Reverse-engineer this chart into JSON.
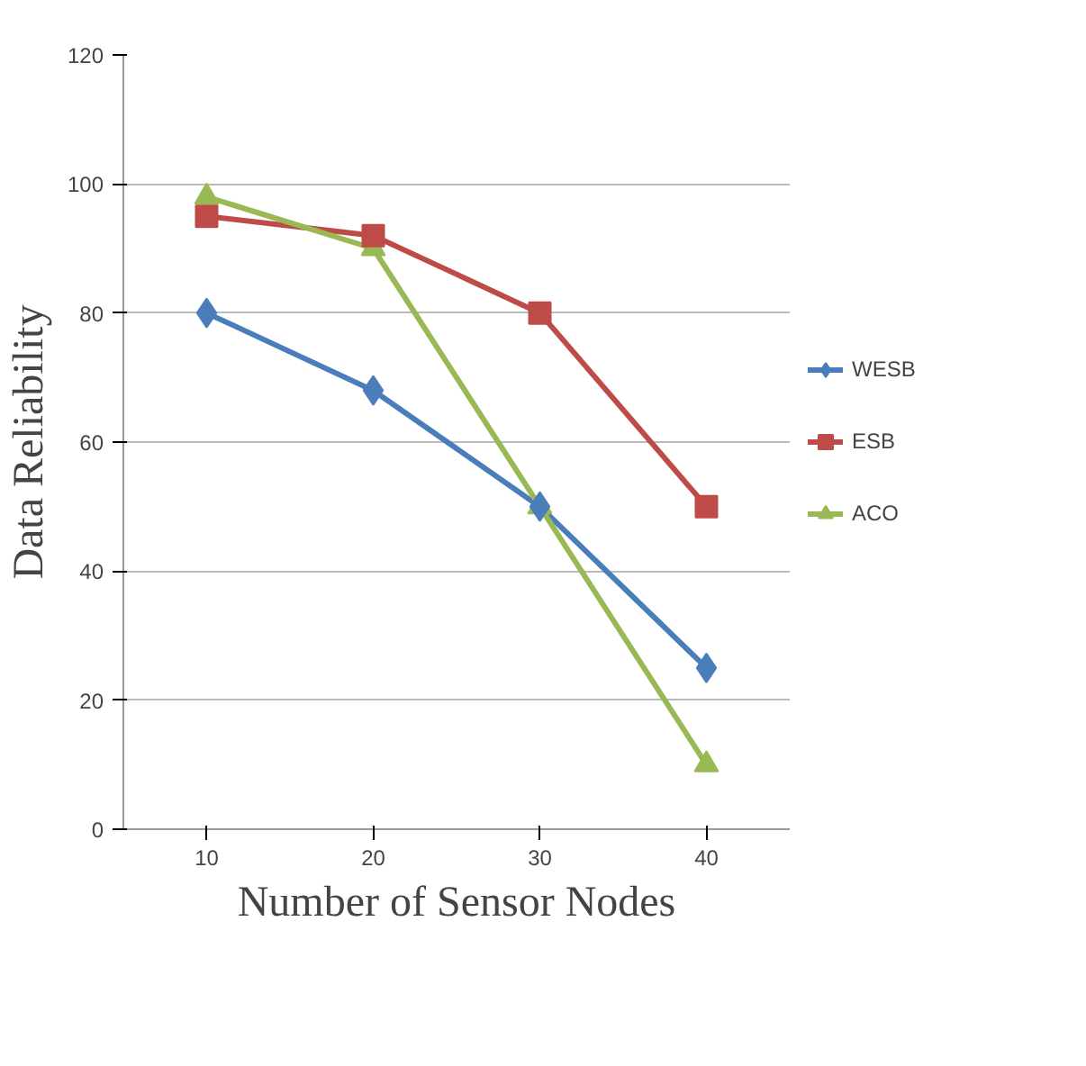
{
  "chart_data": {
    "type": "line",
    "xlabel": "Number of Sensor Nodes",
    "ylabel": "Data Reliability",
    "categories": [
      "10",
      "20",
      "30",
      "40"
    ],
    "series": [
      {
        "name": "WESB",
        "color": "#4a7ebb",
        "values": [
          80,
          68,
          50,
          25
        ],
        "marker": "diamond"
      },
      {
        "name": "ESB",
        "color": "#be4b48",
        "values": [
          95,
          92,
          80,
          50
        ],
        "marker": "square"
      },
      {
        "name": "ACO",
        "color": "#98b954",
        "values": [
          98,
          90,
          50,
          10
        ],
        "marker": "triangle"
      }
    ],
    "ylim": [
      0,
      120
    ],
    "yticks": [
      0,
      20,
      40,
      60,
      80,
      100,
      120
    ],
    "grid": "y",
    "legend": "right"
  }
}
